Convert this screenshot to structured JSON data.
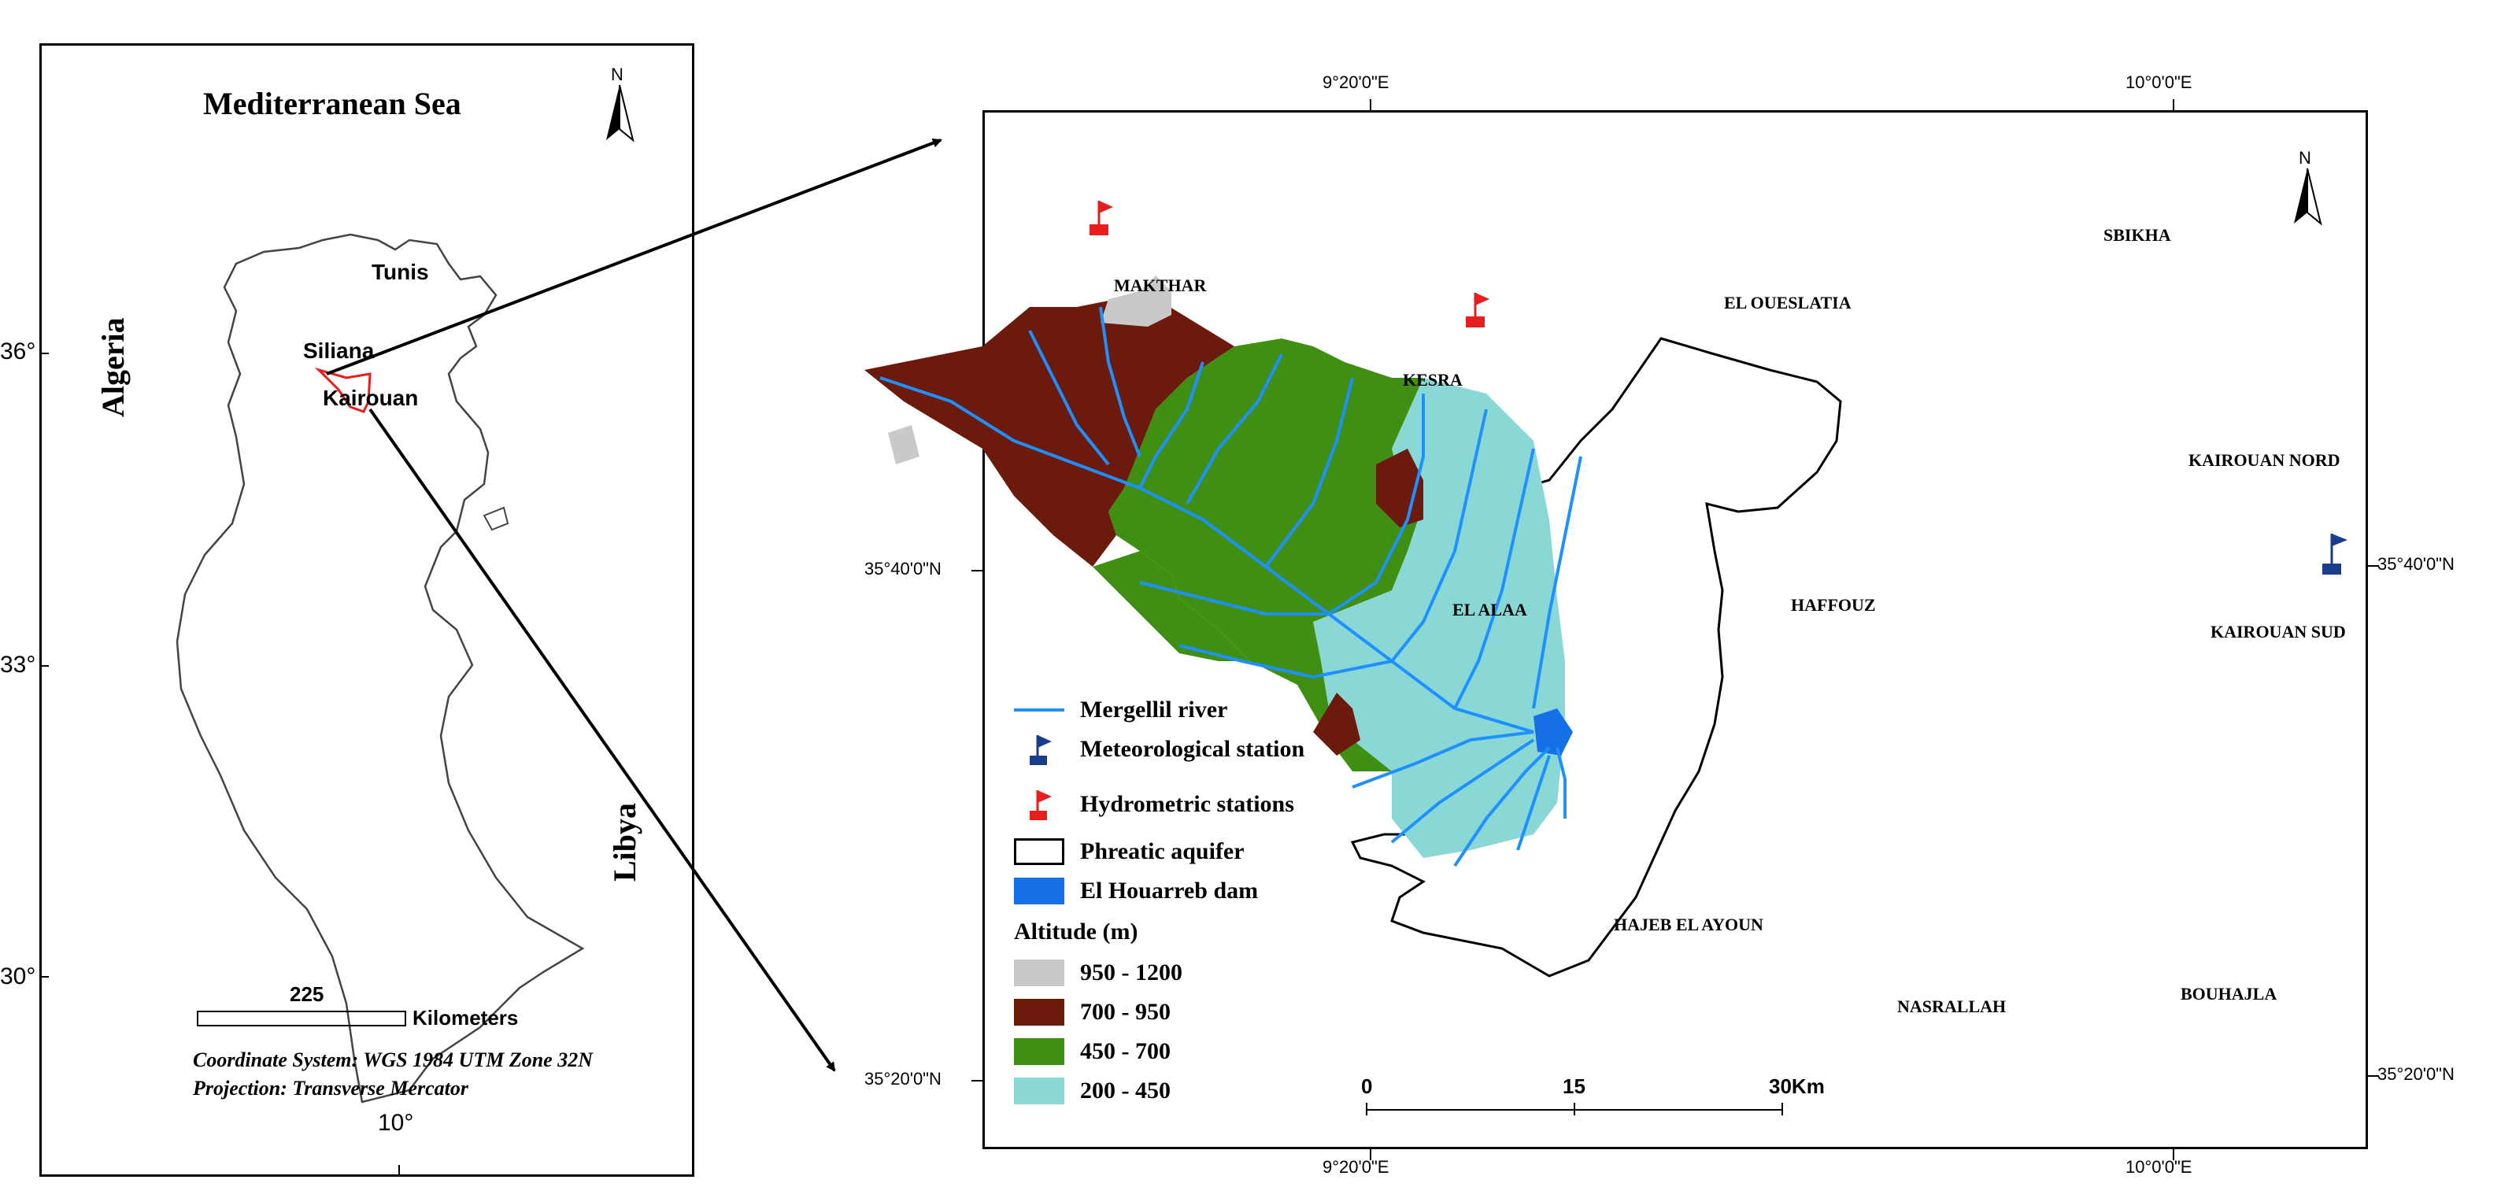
{
  "inset_map": {
    "sea_label": "Mediterranean Sea",
    "north_label": "N",
    "algeria_label": "Algeria",
    "libya_label": "Libya",
    "cities": [
      "Tunis",
      "Siliana",
      "Kairouan"
    ],
    "lat_labels": [
      "36°",
      "33°",
      "30°"
    ],
    "lon_label": "10°",
    "scale_value": "225",
    "scale_unit": "Kilometers",
    "coord_system": "Coordinate System: WGS 1984 UTM Zone 32N",
    "projection": "Projection: Transverse Mercator"
  },
  "main_map": {
    "north_label": "N",
    "top_lon_labels": [
      "9°20'0\"E",
      "10°0'0\"E"
    ],
    "bottom_lon_labels": [
      "9°20'0\"E",
      "10°0'0\"E"
    ],
    "left_lat_labels": [
      "35°40'0\"N",
      "35°20'0\"N"
    ],
    "right_lat_labels": [
      "35°40'0\"N",
      "35°20'0\"N"
    ],
    "places": {
      "makthar": "MAKTHAR",
      "el_oueslatia": "EL OUESLATIA",
      "sbikha": "SBIKHA",
      "kesra": "KESRA",
      "kairouan_nord": "KAIROUAN NORD",
      "kairouan_sud": "KAIROUAN SUD",
      "el_alaa": "EL ALAA",
      "haffouz": "HAFFOUZ",
      "hajeb_el_ayoun": "HAJEB EL AYOUN",
      "nasrallah": "NASRALLAH",
      "bouhajla": "BOUHAJLA"
    },
    "scale": {
      "zero": "0",
      "mid": "15",
      "end": "30Km"
    },
    "legend": {
      "river": "Mergellil river",
      "met_station": "Meteorological station",
      "hydro_station": "Hydrometric stations",
      "aquifer": "Phreatic aquifer",
      "dam": "El Houarreb dam",
      "altitude_title": "Altitude (m)",
      "altitude_classes": [
        {
          "label": "950 - 1200",
          "color": "#c9c9c9"
        },
        {
          "label": "700 - 950",
          "color": "#6b1a0c"
        },
        {
          "label": "450 - 700",
          "color": "#3f8f13"
        },
        {
          "label": "200 - 450",
          "color": "#8ad8d6"
        }
      ]
    }
  },
  "colors": {
    "river": "#1e90ff",
    "dam": "#1570e8",
    "met_flag": "#1a3c8c",
    "hydro_flag": "#e81d1d"
  }
}
